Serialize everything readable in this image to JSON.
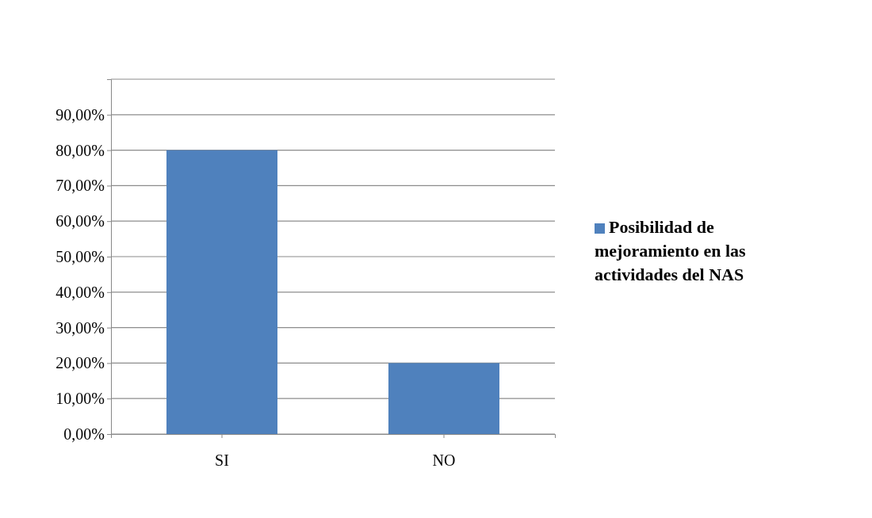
{
  "chart_data": {
    "type": "bar",
    "categories": [
      "SI",
      "NO"
    ],
    "series": [
      {
        "name": "Posibilidad de mejoramiento en las actividades del NAS",
        "color": "#4f81bd",
        "values": [
          80,
          20
        ]
      }
    ],
    "ylim": [
      0,
      100
    ],
    "yticks": [
      {
        "value": 0,
        "label": "0,00%"
      },
      {
        "value": 10,
        "label": "10,00%"
      },
      {
        "value": 20,
        "label": "20,00%"
      },
      {
        "value": 30,
        "label": "30,00%"
      },
      {
        "value": 40,
        "label": "40,00%"
      },
      {
        "value": 50,
        "label": "50,00%"
      },
      {
        "value": 60,
        "label": "60,00%"
      },
      {
        "value": 70,
        "label": "70,00%"
      },
      {
        "value": 80,
        "label": "80,00%"
      },
      {
        "value": 90,
        "label": "90,00%"
      },
      {
        "value": 100,
        "label": null
      }
    ],
    "grid": "y",
    "legend": "right"
  }
}
